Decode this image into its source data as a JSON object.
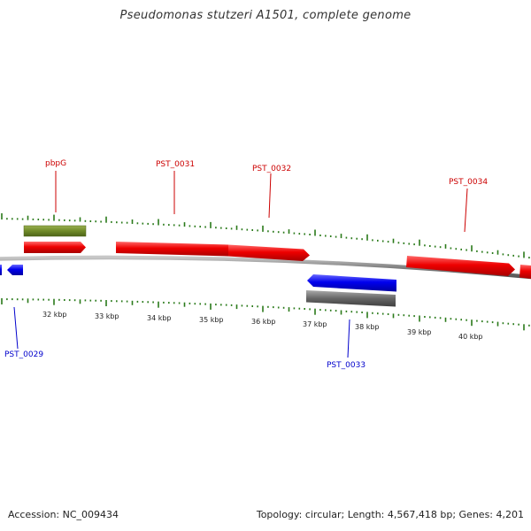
{
  "title": "Pseudomonas stutzeri A1501, complete genome",
  "footer": {
    "accession": "Accession: NC_009434",
    "summary": "Topology: circular; Length: 4,567,418 bp; Genes: 4,201"
  },
  "colors": {
    "forward_gene": "#ff0000",
    "reverse_gene": "#0000ff",
    "pseudo_gene": "#708a2a",
    "grey_feature": "#6e6e6e",
    "backbone": "#888888",
    "tick": "#2a7a1a",
    "forward_label": "#cc0000",
    "reverse_label": "#0000cc"
  },
  "scale_labels": [
    "32 kbp",
    "33 kbp",
    "34 kbp",
    "35 kbp",
    "36 kbp",
    "37 kbp",
    "38 kbp",
    "39 kbp",
    "40 kbp"
  ],
  "gene_labels": {
    "pbpG": "pbpG",
    "PST_0031": "PST_0031",
    "PST_0032": "PST_0032",
    "PST_0034": "PST_0034",
    "PST_0029": "PST_0029",
    "PST_0033": "PST_0033"
  }
}
